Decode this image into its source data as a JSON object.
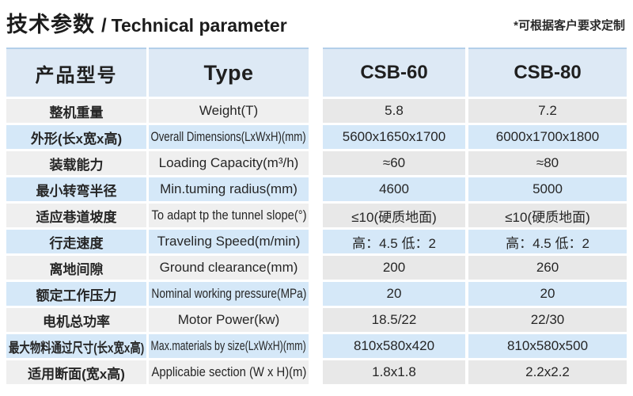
{
  "page": {
    "title_zh": "技术参数",
    "title_sep": "/",
    "title_en": "Technical parameter",
    "note": "*可根据客户要求定制"
  },
  "table": {
    "headers": {
      "name": "产品型号",
      "type": "Type",
      "model1": "CSB-60",
      "model2": "CSB-80"
    },
    "rows": [
      {
        "name": "整机重量",
        "type": "Weight(T)",
        "csb60": "5.8",
        "csb80": "7.2"
      },
      {
        "name": "外形(长x宽x高)",
        "type": "Overall Dimensions(LxWxH)(mm)",
        "csb60": "5600x1650x1700",
        "csb80": "6000x1700x1800"
      },
      {
        "name": "装载能力",
        "type": "Loading Capacity(m³/h)",
        "csb60": "≈60",
        "csb80": "≈80"
      },
      {
        "name": "最小转弯半径",
        "type": "Min.tuming radius(mm)",
        "csb60": "4600",
        "csb80": "5000"
      },
      {
        "name": "适应巷道坡度",
        "type": "To adapt tp the tunnel slope(°)",
        "csb60": "≤10(硬质地面)",
        "csb80": "≤10(硬质地面)"
      },
      {
        "name": "行走速度",
        "type": "Traveling Speed(m/min)",
        "csb60": "高：4.5 低：2",
        "csb80": "高：4.5 低：2"
      },
      {
        "name": "离地间隙",
        "type": "Ground clearance(mm)",
        "csb60": "200",
        "csb80": "260"
      },
      {
        "name": "额定工作压力",
        "type": "Nominal working pressure(MPa)",
        "csb60": "20",
        "csb80": "20"
      },
      {
        "name": "电机总功率",
        "type": "Motor Power(kw)",
        "csb60": "18.5/22",
        "csb80": "22/30"
      },
      {
        "name": "最大物料通过尺寸(长x宽x高)",
        "type": "Max.materials by size(LxWxH)(mm)",
        "csb60": "810x580x420",
        "csb80": "810x580x500"
      },
      {
        "name": "适用断面(宽x高)",
        "type": "Applicabie section (W x H)(m)",
        "csb60": "1.8x1.8",
        "csb80": "2.2x2.2"
      }
    ]
  },
  "colors": {
    "row_gray_left": "#efefef",
    "row_gray_right": "#e8e8e8",
    "row_blue": "#d5e8f8",
    "header_blue": "#dde9f5",
    "header_border": "#b3cfe9",
    "text": "#262626"
  }
}
